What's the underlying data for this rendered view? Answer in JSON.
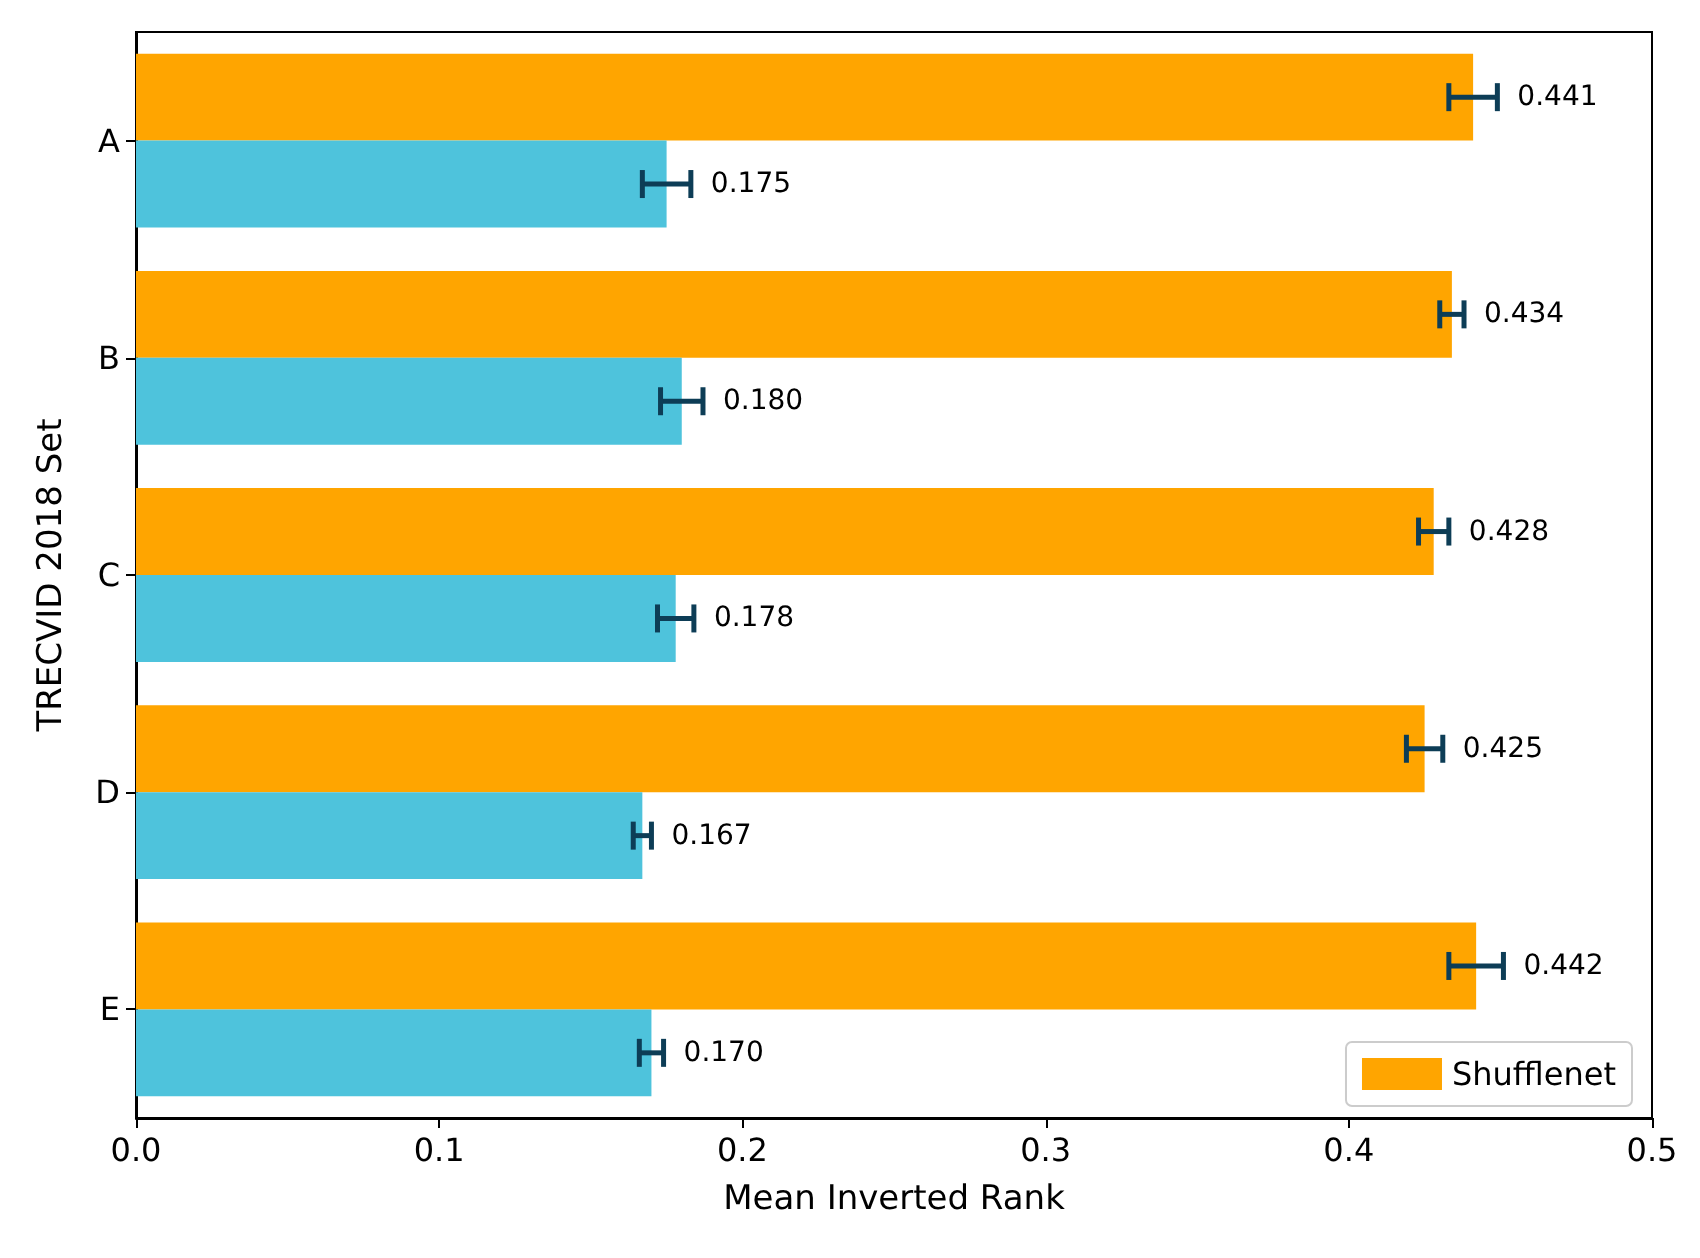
{
  "chart_data": {
    "type": "bar",
    "orientation": "horizontal",
    "xlabel": "Mean Inverted Rank",
    "ylabel": "TRECVID 2018 Set",
    "categories": [
      "A",
      "B",
      "C",
      "D",
      "E"
    ],
    "series": [
      {
        "name": "Shufflenet",
        "color": "#ffa500",
        "values": [
          0.441,
          0.434,
          0.428,
          0.425,
          0.442
        ],
        "errors": [
          0.008,
          0.004,
          0.005,
          0.006,
          0.009
        ],
        "value_labels": [
          "0.441",
          "0.434",
          "0.428",
          "0.425",
          "0.442"
        ]
      },
      {
        "color": "#4ec3dc",
        "values": [
          0.175,
          0.18,
          0.178,
          0.167,
          0.17
        ],
        "errors": [
          0.008,
          0.007,
          0.006,
          0.003,
          0.004
        ],
        "value_labels": [
          "0.175",
          "0.180",
          "0.178",
          "0.167",
          "0.170"
        ]
      }
    ],
    "xlim": [
      0,
      0.5
    ],
    "xticks": [
      {
        "value": 0,
        "label": "0.0"
      },
      {
        "value": 0.1,
        "label": "0.1"
      },
      {
        "value": 0.2,
        "label": "0.2"
      },
      {
        "value": 0.3,
        "label": "0.3"
      },
      {
        "value": 0.4,
        "label": "0.4"
      },
      {
        "value": 0.5,
        "label": "0.5"
      }
    ],
    "legend": "bottom right",
    "grid": false
  }
}
